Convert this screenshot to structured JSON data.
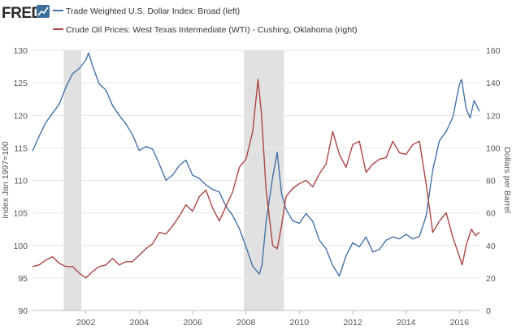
{
  "header": {
    "logo_text": "FRED",
    "logo_icon": "trend-line-icon"
  },
  "chart_data": {
    "type": "line",
    "x_ticks": [
      "2002",
      "2004",
      "2006",
      "2008",
      "2010",
      "2012",
      "2014",
      "2016"
    ],
    "x_range": [
      2000.0,
      2016.75
    ],
    "recessions": [
      [
        2001.17,
        2001.83
      ],
      [
        2007.92,
        2009.42
      ]
    ],
    "y_left": {
      "label": "Index Jan 1997=100",
      "range": [
        90,
        130
      ],
      "ticks": [
        "90",
        "95",
        "100",
        "105",
        "110",
        "115",
        "120",
        "125",
        "130"
      ]
    },
    "y_right": {
      "label": "Dollars per Barrel",
      "range": [
        0,
        160
      ],
      "ticks": [
        "0",
        "20",
        "40",
        "60",
        "80",
        "100",
        "120",
        "140",
        "160"
      ]
    },
    "grid": true,
    "legend_position": "top-left",
    "series": [
      {
        "name": "Trade Weighted U.S. Dollar Index: Broad (left)",
        "axis": "left",
        "color": "#4572a7",
        "points": [
          [
            2000.0,
            114.5
          ],
          [
            2000.25,
            116.8
          ],
          [
            2000.5,
            118.9
          ],
          [
            2000.75,
            120.3
          ],
          [
            2001.0,
            121.7
          ],
          [
            2001.25,
            124.3
          ],
          [
            2001.5,
            126.4
          ],
          [
            2001.75,
            127.2
          ],
          [
            2002.0,
            128.5
          ],
          [
            2002.1,
            129.6
          ],
          [
            2002.25,
            127.6
          ],
          [
            2002.5,
            124.8
          ],
          [
            2002.75,
            123.9
          ],
          [
            2003.0,
            121.5
          ],
          [
            2003.25,
            120.0
          ],
          [
            2003.5,
            118.7
          ],
          [
            2003.75,
            117.0
          ],
          [
            2004.0,
            114.6
          ],
          [
            2004.25,
            115.2
          ],
          [
            2004.5,
            114.8
          ],
          [
            2004.75,
            112.5
          ],
          [
            2005.0,
            110.0
          ],
          [
            2005.25,
            110.8
          ],
          [
            2005.5,
            112.3
          ],
          [
            2005.75,
            113.1
          ],
          [
            2006.0,
            110.8
          ],
          [
            2006.25,
            110.3
          ],
          [
            2006.5,
            109.3
          ],
          [
            2006.75,
            108.6
          ],
          [
            2007.0,
            108.2
          ],
          [
            2007.25,
            106.0
          ],
          [
            2007.5,
            104.6
          ],
          [
            2007.75,
            102.6
          ],
          [
            2008.0,
            99.8
          ],
          [
            2008.25,
            96.8
          ],
          [
            2008.5,
            95.6
          ],
          [
            2008.6,
            97.0
          ],
          [
            2008.75,
            103.5
          ],
          [
            2009.0,
            110.5
          ],
          [
            2009.17,
            114.3
          ],
          [
            2009.33,
            108.0
          ],
          [
            2009.5,
            105.6
          ],
          [
            2009.75,
            103.8
          ],
          [
            2010.0,
            103.4
          ],
          [
            2010.25,
            104.9
          ],
          [
            2010.5,
            103.7
          ],
          [
            2010.75,
            100.8
          ],
          [
            2011.0,
            99.5
          ],
          [
            2011.25,
            96.9
          ],
          [
            2011.5,
            95.3
          ],
          [
            2011.75,
            98.4
          ],
          [
            2012.0,
            100.4
          ],
          [
            2012.25,
            99.8
          ],
          [
            2012.5,
            101.3
          ],
          [
            2012.75,
            99.0
          ],
          [
            2013.0,
            99.4
          ],
          [
            2013.25,
            100.8
          ],
          [
            2013.5,
            101.3
          ],
          [
            2013.75,
            101.0
          ],
          [
            2014.0,
            101.7
          ],
          [
            2014.25,
            101.0
          ],
          [
            2014.5,
            101.4
          ],
          [
            2014.75,
            104.5
          ],
          [
            2015.0,
            111.6
          ],
          [
            2015.25,
            116.1
          ],
          [
            2015.5,
            117.5
          ],
          [
            2015.75,
            119.7
          ],
          [
            2016.0,
            124.8
          ],
          [
            2016.08,
            125.5
          ],
          [
            2016.25,
            121.0
          ],
          [
            2016.4,
            119.6
          ],
          [
            2016.55,
            122.3
          ],
          [
            2016.75,
            120.6
          ]
        ]
      },
      {
        "name": "Crude Oil Prices: West Texas Intermediate (WTI) - Cushing, Oklahoma (right)",
        "axis": "right",
        "color": "#aa4643",
        "points": [
          [
            2000.0,
            27
          ],
          [
            2000.25,
            28
          ],
          [
            2000.5,
            31
          ],
          [
            2000.75,
            33
          ],
          [
            2001.0,
            29
          ],
          [
            2001.25,
            27
          ],
          [
            2001.5,
            27
          ],
          [
            2001.75,
            23
          ],
          [
            2002.0,
            20
          ],
          [
            2002.25,
            24
          ],
          [
            2002.5,
            27
          ],
          [
            2002.75,
            28
          ],
          [
            2003.0,
            32
          ],
          [
            2003.25,
            28
          ],
          [
            2003.5,
            30
          ],
          [
            2003.75,
            30
          ],
          [
            2004.0,
            34
          ],
          [
            2004.25,
            38
          ],
          [
            2004.5,
            41
          ],
          [
            2004.75,
            48
          ],
          [
            2005.0,
            47
          ],
          [
            2005.25,
            52
          ],
          [
            2005.5,
            58
          ],
          [
            2005.75,
            65
          ],
          [
            2006.0,
            61
          ],
          [
            2006.25,
            70
          ],
          [
            2006.5,
            74
          ],
          [
            2006.75,
            63
          ],
          [
            2007.0,
            55
          ],
          [
            2007.25,
            64
          ],
          [
            2007.5,
            73
          ],
          [
            2007.75,
            88
          ],
          [
            2008.0,
            93
          ],
          [
            2008.25,
            110
          ],
          [
            2008.45,
            142
          ],
          [
            2008.58,
            121
          ],
          [
            2008.75,
            75
          ],
          [
            2009.0,
            40
          ],
          [
            2009.17,
            38
          ],
          [
            2009.33,
            52
          ],
          [
            2009.5,
            70
          ],
          [
            2009.75,
            75
          ],
          [
            2010.0,
            78
          ],
          [
            2010.25,
            80
          ],
          [
            2010.5,
            76
          ],
          [
            2010.75,
            84
          ],
          [
            2011.0,
            90
          ],
          [
            2011.25,
            110
          ],
          [
            2011.5,
            96
          ],
          [
            2011.75,
            88
          ],
          [
            2012.0,
            102
          ],
          [
            2012.25,
            104
          ],
          [
            2012.5,
            85
          ],
          [
            2012.75,
            90
          ],
          [
            2013.0,
            93
          ],
          [
            2013.25,
            94
          ],
          [
            2013.5,
            104
          ],
          [
            2013.75,
            97
          ],
          [
            2014.0,
            96
          ],
          [
            2014.25,
            102
          ],
          [
            2014.5,
            104
          ],
          [
            2014.75,
            78
          ],
          [
            2015.0,
            48
          ],
          [
            2015.25,
            55
          ],
          [
            2015.5,
            60
          ],
          [
            2015.75,
            45
          ],
          [
            2016.0,
            33
          ],
          [
            2016.1,
            28
          ],
          [
            2016.25,
            40
          ],
          [
            2016.45,
            50
          ],
          [
            2016.6,
            46
          ],
          [
            2016.75,
            48
          ]
        ]
      }
    ]
  }
}
